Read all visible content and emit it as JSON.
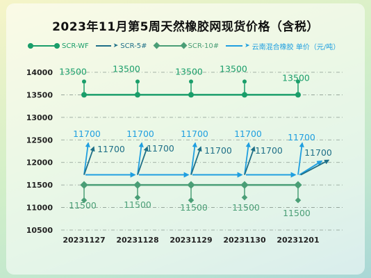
{
  "chart_data": {
    "type": "line",
    "title": "2023年11月第5周天然橡胶网现货价格（含税）",
    "xlabel": "",
    "ylabel": "",
    "categories": [
      "20231127",
      "20231128",
      "20231129",
      "20231130",
      "20231201"
    ],
    "ylim": [
      10500,
      14000
    ],
    "yticks": [
      14000,
      13500,
      13000,
      12500,
      12000,
      11500,
      11000,
      10500
    ],
    "grid": true,
    "legend_position": "top",
    "series": [
      {
        "name": "SCR-WF",
        "values": [
          13500,
          13500,
          13500,
          13500,
          13500
        ],
        "color": "#1a9e6a",
        "marker": "circle",
        "labels": [
          "13500",
          "13500",
          "13500",
          "13500",
          "13500"
        ]
      },
      {
        "name": "SCR-5#",
        "values": [
          11700,
          11700,
          11700,
          11700,
          11700
        ],
        "color": "#1e6f87",
        "marker": "arrow",
        "labels": [
          "11700",
          "11700",
          "11700",
          "11700",
          "11700"
        ]
      },
      {
        "name": "SCR-10#",
        "values": [
          11500,
          11500,
          11500,
          11500,
          11500
        ],
        "color": "#4a9e76",
        "marker": "diamond",
        "labels": [
          "11500",
          "11500",
          "11500",
          "11500",
          "11500"
        ]
      },
      {
        "name": "云南混合橡胶 单价（元/吨）",
        "values": [
          11700,
          11700,
          11700,
          11700,
          11700
        ],
        "color": "#1f9fe0",
        "marker": "arrow",
        "labels": [
          "11700",
          "11700",
          "11700",
          "11700",
          "11700"
        ]
      }
    ]
  }
}
